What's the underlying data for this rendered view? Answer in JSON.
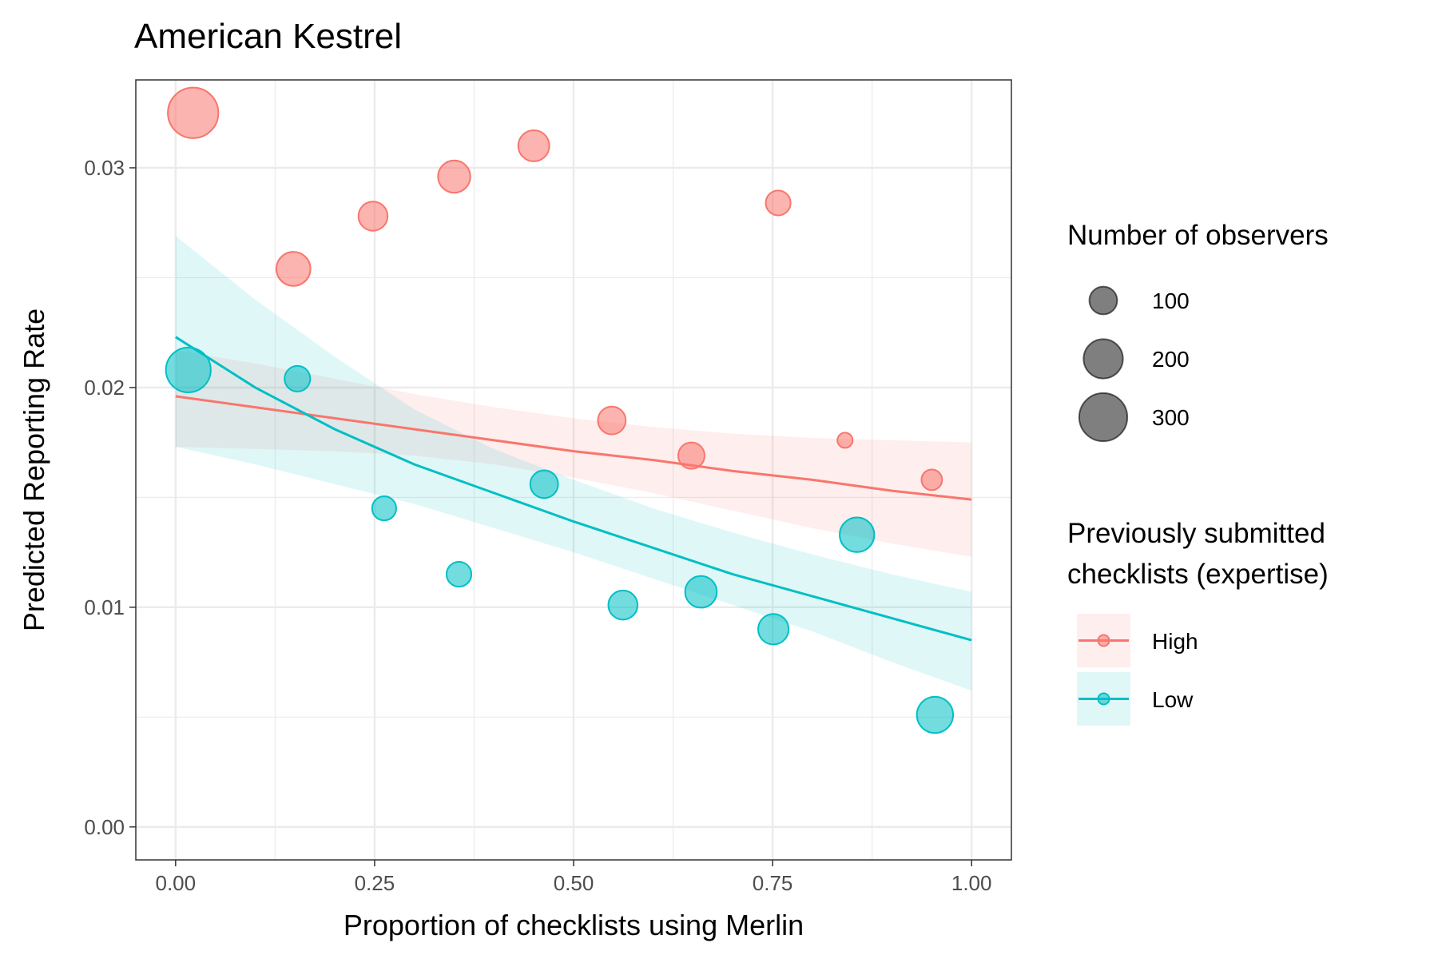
{
  "chart_data": {
    "type": "scatter",
    "title": "American Kestrel",
    "xlabel": "Proportion of checklists using Merlin",
    "ylabel": "Predicted Reporting Rate",
    "xlim": [
      -0.05,
      1.05
    ],
    "ylim": [
      -0.0015,
      0.034
    ],
    "x_ticks": [
      0,
      0.25,
      0.5,
      0.75,
      1
    ],
    "x_tick_labels": [
      "0.00",
      "0.25",
      "0.50",
      "0.75",
      "1.00"
    ],
    "y_ticks": [
      0,
      0.01,
      0.02,
      0.03
    ],
    "y_tick_labels": [
      "0.00",
      "0.01",
      "0.02",
      "0.03"
    ],
    "grid": true,
    "legend_position": "right",
    "size_legend": {
      "title": "Number of observers",
      "entries": [
        {
          "label": "100",
          "value": 100
        },
        {
          "label": "200",
          "value": 200
        },
        {
          "label": "300",
          "value": 300
        }
      ]
    },
    "color_legend": {
      "title_lines": [
        "Previously submitted",
        "checklists (expertise)"
      ]
    },
    "series": [
      {
        "name": "High",
        "color": "#f8766d",
        "points": [
          {
            "x": 0.022,
            "y": 0.0325,
            "n": 330
          },
          {
            "x": 0.148,
            "y": 0.0254,
            "n": 150
          },
          {
            "x": 0.248,
            "y": 0.0278,
            "n": 110
          },
          {
            "x": 0.35,
            "y": 0.0296,
            "n": 135
          },
          {
            "x": 0.45,
            "y": 0.031,
            "n": 125
          },
          {
            "x": 0.548,
            "y": 0.0185,
            "n": 100
          },
          {
            "x": 0.648,
            "y": 0.0169,
            "n": 90
          },
          {
            "x": 0.757,
            "y": 0.0284,
            "n": 80
          },
          {
            "x": 0.841,
            "y": 0.0176,
            "n": 30
          },
          {
            "x": 0.95,
            "y": 0.0158,
            "n": 55
          }
        ],
        "fit": {
          "x": [
            0,
            0.1,
            0.2,
            0.3,
            0.4,
            0.5,
            0.6,
            0.7,
            0.8,
            0.9,
            1
          ],
          "y": [
            0.0196,
            0.0191,
            0.0186,
            0.0181,
            0.0176,
            0.0171,
            0.0167,
            0.0162,
            0.0158,
            0.0153,
            0.0149
          ],
          "lower": [
            0.0173,
            0.0172,
            0.0171,
            0.0169,
            0.0165,
            0.0159,
            0.0152,
            0.0144,
            0.0136,
            0.0129,
            0.0123
          ],
          "upper": [
            0.0217,
            0.0211,
            0.0204,
            0.0197,
            0.0191,
            0.0186,
            0.0182,
            0.0179,
            0.0177,
            0.0176,
            0.0175
          ]
        }
      },
      {
        "name": "Low",
        "color": "#00bfc4",
        "points": [
          {
            "x": 0.016,
            "y": 0.0208,
            "n": 260
          },
          {
            "x": 0.153,
            "y": 0.0204,
            "n": 85
          },
          {
            "x": 0.262,
            "y": 0.0145,
            "n": 75
          },
          {
            "x": 0.356,
            "y": 0.0115,
            "n": 80
          },
          {
            "x": 0.463,
            "y": 0.0156,
            "n": 100
          },
          {
            "x": 0.562,
            "y": 0.0101,
            "n": 110
          },
          {
            "x": 0.66,
            "y": 0.0107,
            "n": 130
          },
          {
            "x": 0.751,
            "y": 0.009,
            "n": 120
          },
          {
            "x": 0.856,
            "y": 0.0133,
            "n": 155
          },
          {
            "x": 0.954,
            "y": 0.0051,
            "n": 170
          }
        ],
        "fit": {
          "x": [
            0,
            0.1,
            0.2,
            0.3,
            0.4,
            0.5,
            0.6,
            0.7,
            0.8,
            0.9,
            1
          ],
          "y": [
            0.0223,
            0.02,
            0.0181,
            0.0165,
            0.0152,
            0.0139,
            0.0127,
            0.0115,
            0.0105,
            0.0095,
            0.0085
          ],
          "lower": [
            0.0173,
            0.0165,
            0.0156,
            0.0147,
            0.0136,
            0.0125,
            0.0113,
            0.0101,
            0.0089,
            0.0075,
            0.0062
          ],
          "upper": [
            0.0269,
            0.024,
            0.0214,
            0.019,
            0.0172,
            0.0158,
            0.0145,
            0.0134,
            0.0124,
            0.0115,
            0.0107
          ]
        }
      }
    ]
  }
}
